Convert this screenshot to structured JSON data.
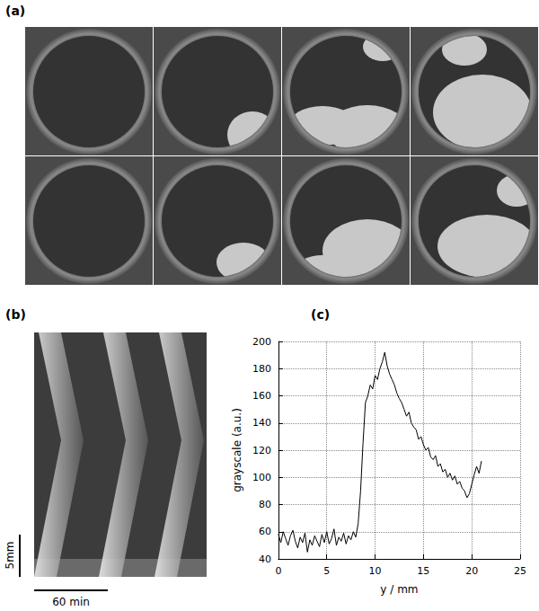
{
  "panel_labels": {
    "a": "(a)",
    "b": "(b)",
    "c": "(c)"
  },
  "kymograph": {
    "scale_y": "5mm",
    "scale_x": "60 min"
  },
  "chart_data": {
    "type": "line",
    "xlabel": "y / mm",
    "ylabel": "grayscale (a.u.)",
    "color": "#000000",
    "grid": true,
    "xlim": [
      0,
      25
    ],
    "xticks": [
      0,
      5,
      10,
      15,
      20,
      25
    ],
    "ylim": [
      40,
      200
    ],
    "yticks": [
      40,
      60,
      80,
      100,
      120,
      140,
      160,
      180,
      200
    ],
    "x": [
      0,
      0.25,
      0.5,
      0.75,
      1,
      1.25,
      1.5,
      1.75,
      2,
      2.25,
      2.5,
      2.75,
      3,
      3.25,
      3.5,
      3.75,
      4,
      4.25,
      4.5,
      4.75,
      5,
      5.25,
      5.5,
      5.75,
      6,
      6.25,
      6.5,
      6.75,
      7,
      7.25,
      7.5,
      7.75,
      8,
      8.25,
      8.5,
      8.75,
      9,
      9.25,
      9.5,
      9.75,
      10,
      10.25,
      10.5,
      10.75,
      11,
      11.25,
      11.5,
      11.75,
      12,
      12.25,
      12.5,
      12.75,
      13,
      13.25,
      13.5,
      13.75,
      14,
      14.25,
      14.5,
      14.75,
      15,
      15.25,
      15.5,
      15.75,
      16,
      16.25,
      16.5,
      16.75,
      17,
      17.25,
      17.5,
      17.75,
      18,
      18.25,
      18.5,
      18.75,
      19,
      19.25,
      19.5,
      19.75,
      20,
      20.25,
      20.5,
      20.75,
      21
    ],
    "values": [
      58,
      52,
      60,
      55,
      50,
      57,
      61,
      53,
      48,
      56,
      52,
      59,
      45,
      54,
      50,
      57,
      53,
      49,
      58,
      52,
      60,
      51,
      55,
      62,
      50,
      56,
      53,
      59,
      51,
      57,
      54,
      60,
      56,
      66,
      90,
      125,
      155,
      160,
      168,
      165,
      175,
      172,
      180,
      185,
      192,
      182,
      176,
      172,
      168,
      162,
      158,
      155,
      150,
      145,
      148,
      140,
      137,
      135,
      128,
      130,
      124,
      120,
      122,
      115,
      113,
      116,
      108,
      110,
      104,
      106,
      100,
      103,
      98,
      101,
      95,
      97,
      92,
      90,
      85,
      88,
      95,
      102,
      108,
      103,
      112
    ]
  }
}
